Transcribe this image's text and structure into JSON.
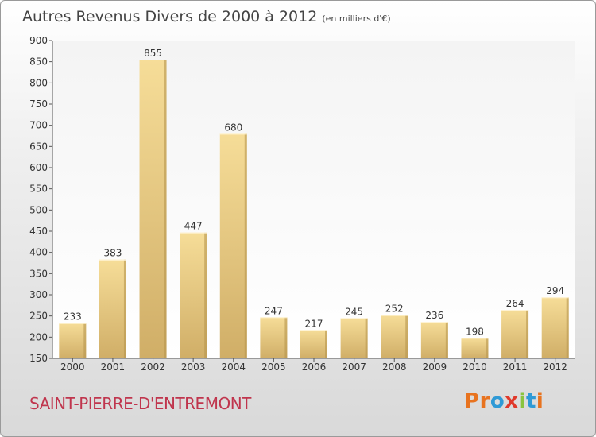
{
  "header": {
    "title": "Autres Revenus Divers de 2000 à 2012",
    "unit": "(en milliers d'€)"
  },
  "footer": {
    "commune": "SAINT-PIERRE-D'ENTREMONT",
    "brand": "Proxiti",
    "brand_colors": [
      "#e8731f",
      "#e8731f",
      "#2f9ad6",
      "#e0392b",
      "#8ac43f",
      "#2f9ad6",
      "#e8731f"
    ]
  },
  "chart_data": {
    "type": "bar",
    "categories": [
      "2000",
      "2001",
      "2002",
      "2003",
      "2004",
      "2005",
      "2006",
      "2007",
      "2008",
      "2009",
      "2010",
      "2011",
      "2012"
    ],
    "values": [
      233,
      383,
      855,
      447,
      680,
      247,
      217,
      245,
      252,
      236,
      198,
      264,
      294
    ],
    "ylim": [
      150,
      900
    ],
    "yticks": [
      150,
      200,
      250,
      300,
      350,
      400,
      450,
      500,
      550,
      600,
      650,
      700,
      750,
      800,
      850,
      900
    ],
    "grid": false,
    "colors": {
      "bar_light": "#f6dd98",
      "bar_dark": "#d0ae67",
      "bar_side": "#b8964f",
      "plot_bg": "#ffffff"
    }
  }
}
